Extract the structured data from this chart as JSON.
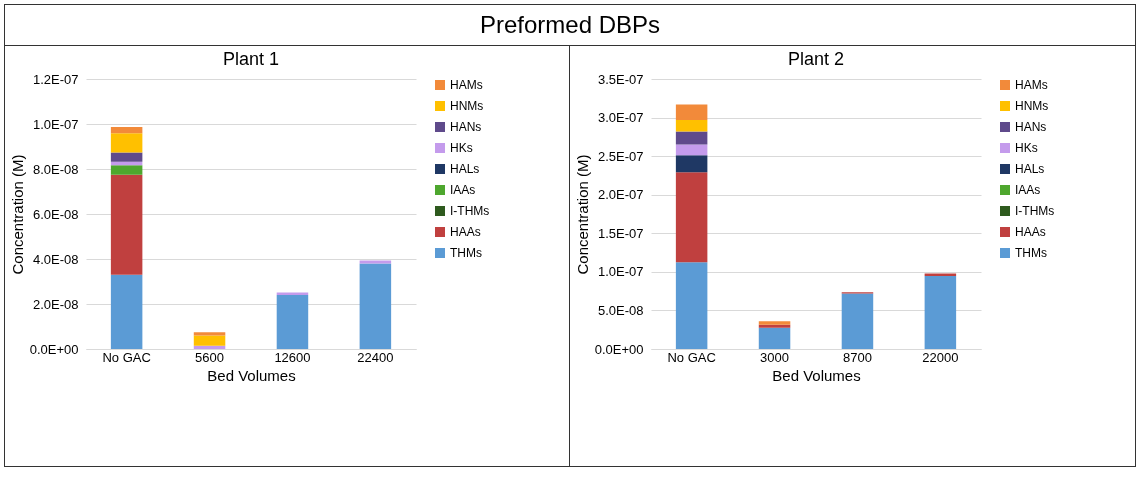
{
  "chart_data": [
    {
      "type": "bar",
      "annotations": [
        "Preformed DBPs"
      ],
      "title": "Plant 1",
      "xlabel": "Bed Volumes",
      "ylabel": "Concentration (M)",
      "categories": [
        "No GAC",
        "5600",
        "12600",
        "22400"
      ],
      "stacked": true,
      "legend": "right",
      "grid": "y",
      "ylim": [
        0,
        1.2e-07
      ],
      "yticks": [
        {
          "value": 0,
          "label": "0.0E+00"
        },
        {
          "value": 2e-08,
          "label": "2.0E-08"
        },
        {
          "value": 4e-08,
          "label": "4.0E-08"
        },
        {
          "value": 6e-08,
          "label": "6.0E-08"
        },
        {
          "value": 8e-08,
          "label": "8.0E-08"
        },
        {
          "value": 1e-07,
          "label": "1.0E-07"
        },
        {
          "value": 1.2e-07,
          "label": "1.2E-07"
        }
      ],
      "series": [
        {
          "name": "THMs",
          "color": "#5b9bd5",
          "values": [
            3.3e-08,
            0,
            2.4e-08,
            3.8e-08
          ]
        },
        {
          "name": "HAAs",
          "color": "#c0403f",
          "values": [
            4.45e-08,
            0,
            0,
            0
          ]
        },
        {
          "name": "I-THMs",
          "color": "#2e5a1e",
          "values": [
            0,
            0,
            0,
            0
          ]
        },
        {
          "name": "IAAs",
          "color": "#4ea72e",
          "values": [
            4.2e-09,
            0,
            0,
            0
          ]
        },
        {
          "name": "HALs",
          "color": "#1f3864",
          "values": [
            0,
            0,
            0,
            0
          ]
        },
        {
          "name": "HKs",
          "color": "#c49bec",
          "values": [
            1.5e-09,
            1.5e-09,
            1.1e-09,
            1.3e-09
          ]
        },
        {
          "name": "HANs",
          "color": "#5f4a8b",
          "values": [
            4.1e-09,
            0,
            0,
            0
          ]
        },
        {
          "name": "HNMs",
          "color": "#ffc000",
          "values": [
            8.6e-09,
            4.5e-09,
            0,
            0
          ]
        },
        {
          "name": "HAMs",
          "color": "#f28a3a",
          "values": [
            2.8e-09,
            1.5e-09,
            0,
            0
          ]
        }
      ]
    },
    {
      "type": "bar",
      "title": "Plant 2",
      "xlabel": "Bed Volumes",
      "ylabel": "Concentration (M)",
      "categories": [
        "No GAC",
        "3000",
        "8700",
        "22000"
      ],
      "stacked": true,
      "legend": "right",
      "grid": "y",
      "ylim": [
        0,
        3.5e-07
      ],
      "yticks": [
        {
          "value": 0,
          "label": "0.0E+00"
        },
        {
          "value": 5e-08,
          "label": "5.0E-08"
        },
        {
          "value": 1e-07,
          "label": "1.0E-07"
        },
        {
          "value": 1.5e-07,
          "label": "1.5E-07"
        },
        {
          "value": 2e-07,
          "label": "2.0E-07"
        },
        {
          "value": 2.5e-07,
          "label": "2.5E-07"
        },
        {
          "value": 3e-07,
          "label": "3.0E-07"
        },
        {
          "value": 3.5e-07,
          "label": "3.5E-07"
        }
      ],
      "series": [
        {
          "name": "THMs",
          "color": "#5b9bd5",
          "values": [
            1.125e-07,
            2.75e-08,
            7.2e-08,
            9.46e-08
          ]
        },
        {
          "name": "HAAs",
          "color": "#c0403f",
          "values": [
            1.165e-07,
            4e-09,
            1.7e-09,
            3.4e-09
          ]
        },
        {
          "name": "I-THMs",
          "color": "#2e5a1e",
          "values": [
            0,
            0,
            0,
            0
          ]
        },
        {
          "name": "IAAs",
          "color": "#4ea72e",
          "values": [
            0,
            0,
            0,
            0
          ]
        },
        {
          "name": "HALs",
          "color": "#1f3864",
          "values": [
            2.2e-08,
            0,
            0,
            0
          ]
        },
        {
          "name": "HKs",
          "color": "#c49bec",
          "values": [
            1.4e-08,
            0,
            0,
            0
          ]
        },
        {
          "name": "HANs",
          "color": "#5f4a8b",
          "values": [
            1.7e-08,
            0,
            0,
            0
          ]
        },
        {
          "name": "HNMs",
          "color": "#ffc000",
          "values": [
            1.5e-08,
            0,
            0,
            0
          ]
        },
        {
          "name": "HAMs",
          "color": "#f28a3a",
          "values": [
            2e-08,
            4.6e-09,
            0,
            0
          ]
        }
      ]
    }
  ]
}
